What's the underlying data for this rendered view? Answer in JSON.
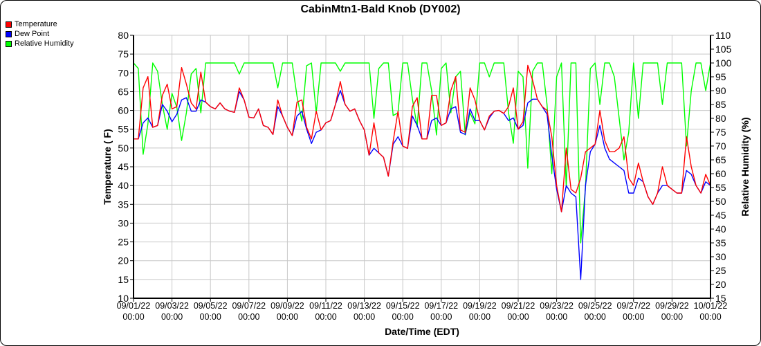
{
  "chart_data": {
    "type": "line",
    "title": "CabinMtn1-Bald Knob (DY002)",
    "xlabel": "Date/Time (EDT)",
    "ylabel": "Temperature ( F)",
    "y2label": "Relative Humidity (%)",
    "ylim": [
      10,
      80
    ],
    "y2lim": [
      15,
      110
    ],
    "yticks": [
      10,
      15,
      20,
      25,
      30,
      35,
      40,
      45,
      50,
      55,
      60,
      65,
      70,
      75,
      80
    ],
    "y2ticks": [
      15,
      20,
      25,
      30,
      35,
      40,
      45,
      50,
      55,
      60,
      65,
      70,
      75,
      80,
      85,
      90,
      95,
      100,
      105,
      110
    ],
    "x_start": "09/01/22 00:00",
    "x_step_hours": 6,
    "x_range_days": [
      0,
      30
    ],
    "xticks": [
      {
        "date": "09/01/22",
        "time": "00:00"
      },
      {
        "date": "09/03/22",
        "time": "00:00"
      },
      {
        "date": "09/05/22",
        "time": "00:00"
      },
      {
        "date": "09/07/22",
        "time": "00:00"
      },
      {
        "date": "09/09/22",
        "time": "00:00"
      },
      {
        "date": "09/11/22",
        "time": "00:00"
      },
      {
        "date": "09/13/22",
        "time": "00:00"
      },
      {
        "date": "09/15/22",
        "time": "00:00"
      },
      {
        "date": "09/17/22",
        "time": "00:00"
      },
      {
        "date": "09/19/22",
        "time": "00:00"
      },
      {
        "date": "09/21/22",
        "time": "00:00"
      },
      {
        "date": "09/23/22",
        "time": "00:00"
      },
      {
        "date": "09/25/22",
        "time": "00:00"
      },
      {
        "date": "09/27/22",
        "time": "00:00"
      },
      {
        "date": "09/29/22",
        "time": "00:00"
      },
      {
        "date": "10/01/22",
        "time": "00:00"
      }
    ],
    "grid": true,
    "legend_position": "top-left",
    "series": [
      {
        "name": "Relative Humidity",
        "axis": "right",
        "color": "#00ff00",
        "values": [
          100,
          98,
          67,
          78,
          100,
          97,
          85,
          76,
          89,
          84,
          72,
          82,
          96,
          98,
          82,
          100,
          100,
          100,
          100,
          100,
          100,
          100,
          96,
          100,
          100,
          100,
          100,
          100,
          100,
          100,
          91,
          100,
          100,
          100,
          88,
          79,
          99,
          100,
          82,
          100,
          100,
          100,
          100,
          97,
          100,
          100,
          100,
          100,
          100,
          100,
          80,
          98,
          100,
          100,
          81,
          82,
          100,
          100,
          87,
          77,
          100,
          100,
          90,
          74,
          98,
          100,
          82,
          95,
          97,
          74,
          82,
          78,
          100,
          100,
          95,
          100,
          100,
          100,
          82,
          71,
          97,
          95,
          62,
          97,
          100,
          100,
          85,
          60,
          95,
          100,
          55,
          100,
          100,
          35,
          55,
          98,
          100,
          85,
          100,
          100,
          95,
          80,
          65,
          75,
          100,
          80,
          100,
          100,
          100,
          100,
          85,
          100,
          100,
          100,
          100,
          70,
          90,
          100,
          100,
          90,
          100
        ]
      },
      {
        "name": "Dew Point",
        "axis": "left",
        "color": "#0000ff",
        "values": [
          52.4,
          52.4,
          56.7,
          58,
          55.5,
          56,
          61.6,
          59.8,
          57,
          59,
          62.8,
          63.4,
          59.8,
          59.8,
          62.8,
          62.2,
          61,
          60.4,
          62,
          60.4,
          59.8,
          59.5,
          65,
          62.8,
          58.2,
          58,
          60.4,
          56,
          55.5,
          53.6,
          61,
          58.5,
          55.5,
          53.3,
          58.5,
          59.8,
          55,
          51.2,
          54.2,
          54.8,
          56.7,
          57.3,
          61.6,
          65.3,
          61.6,
          59.8,
          60.4,
          57.3,
          54.8,
          48.1,
          49.9,
          48.7,
          47.5,
          42.5,
          51,
          53,
          50.5,
          49.9,
          58.5,
          56,
          52.4,
          52.4,
          57.3,
          58,
          56,
          56.7,
          60.4,
          61,
          54.2,
          53.6,
          60.4,
          57.3,
          57.3,
          54.8,
          58,
          59.8,
          60,
          59.2,
          57.3,
          58,
          55,
          56,
          62,
          63,
          63,
          61,
          59,
          48,
          39,
          33,
          40,
          38,
          37,
          15,
          40,
          49,
          51,
          56,
          50,
          47,
          46,
          45,
          44,
          38,
          38,
          42,
          41,
          37,
          35,
          38,
          40,
          40,
          39,
          38,
          38,
          44,
          43,
          40,
          38,
          41,
          40
        ]
      },
      {
        "name": "Temperature",
        "axis": "left",
        "color": "#ff0000",
        "values": [
          52.4,
          52.4,
          66,
          69,
          55.5,
          56,
          64,
          67,
          60.4,
          61,
          71.4,
          67,
          62,
          60.4,
          70.2,
          62.2,
          61,
          60.4,
          62,
          60.4,
          59.8,
          59.5,
          66,
          62.8,
          58.2,
          58,
          60.4,
          56,
          55.5,
          53.6,
          62.8,
          58.5,
          55.5,
          53.3,
          62.2,
          62.8,
          55.5,
          52.4,
          59.8,
          54.8,
          56.7,
          57.3,
          61.6,
          67.7,
          61.6,
          59.8,
          60.4,
          57.3,
          54.8,
          48.1,
          56.7,
          48.7,
          47.5,
          42.5,
          51.8,
          59.8,
          50.5,
          49.9,
          61,
          63.4,
          52.4,
          52.4,
          64,
          64,
          56,
          56.7,
          65.3,
          69,
          54.8,
          54.2,
          66,
          62.8,
          57.3,
          54.8,
          58.5,
          59.8,
          60,
          59.2,
          61,
          66,
          55,
          57,
          72,
          68,
          63,
          61,
          60,
          53,
          40,
          33,
          50,
          39,
          38,
          42,
          49,
          50,
          51,
          60,
          52,
          49,
          49,
          50,
          53,
          42,
          40,
          46,
          41,
          37,
          35,
          38,
          45,
          40,
          39,
          38,
          38,
          53,
          45,
          40,
          38,
          43,
          40
        ]
      }
    ],
    "legend": [
      {
        "label": "Temperature",
        "color": "#ff0000"
      },
      {
        "label": "Dew Point",
        "color": "#0000ff"
      },
      {
        "label": "Relative Humidity",
        "color": "#00ff00"
      }
    ]
  }
}
